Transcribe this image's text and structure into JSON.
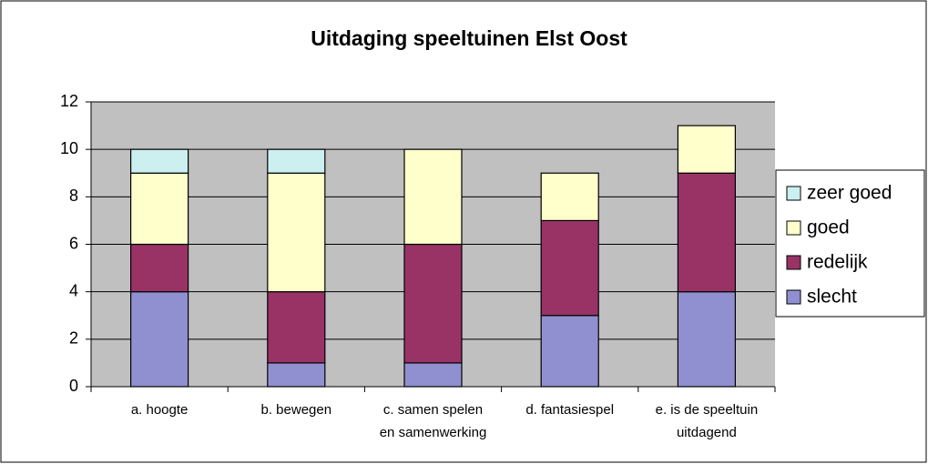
{
  "chart_data": {
    "type": "stacked_bar",
    "title": "Uitdaging speeltuinen Elst Oost",
    "categories": [
      [
        "a. hoogte"
      ],
      [
        "b. bewegen"
      ],
      [
        "c. samen spelen",
        "en samenwerking"
      ],
      [
        "d. fantasiespel"
      ],
      [
        "e. is de speeltuin",
        "uitdagend"
      ]
    ],
    "series": [
      {
        "name": "slecht",
        "color": "#9090d0",
        "values": [
          4,
          1,
          1,
          3,
          4
        ]
      },
      {
        "name": "redelijk",
        "color": "#993366",
        "values": [
          2,
          3,
          5,
          4,
          5
        ]
      },
      {
        "name": "goed",
        "color": "#ffffcc",
        "values": [
          3,
          5,
          4,
          2,
          2
        ]
      },
      {
        "name": "zeer goed",
        "color": "#ccf0f0",
        "values": [
          1,
          1,
          0,
          0,
          0
        ]
      }
    ],
    "ylim": [
      0,
      12
    ],
    "yticks": [
      0,
      2,
      4,
      6,
      8,
      10,
      12
    ],
    "grid": true,
    "legend": "right"
  }
}
